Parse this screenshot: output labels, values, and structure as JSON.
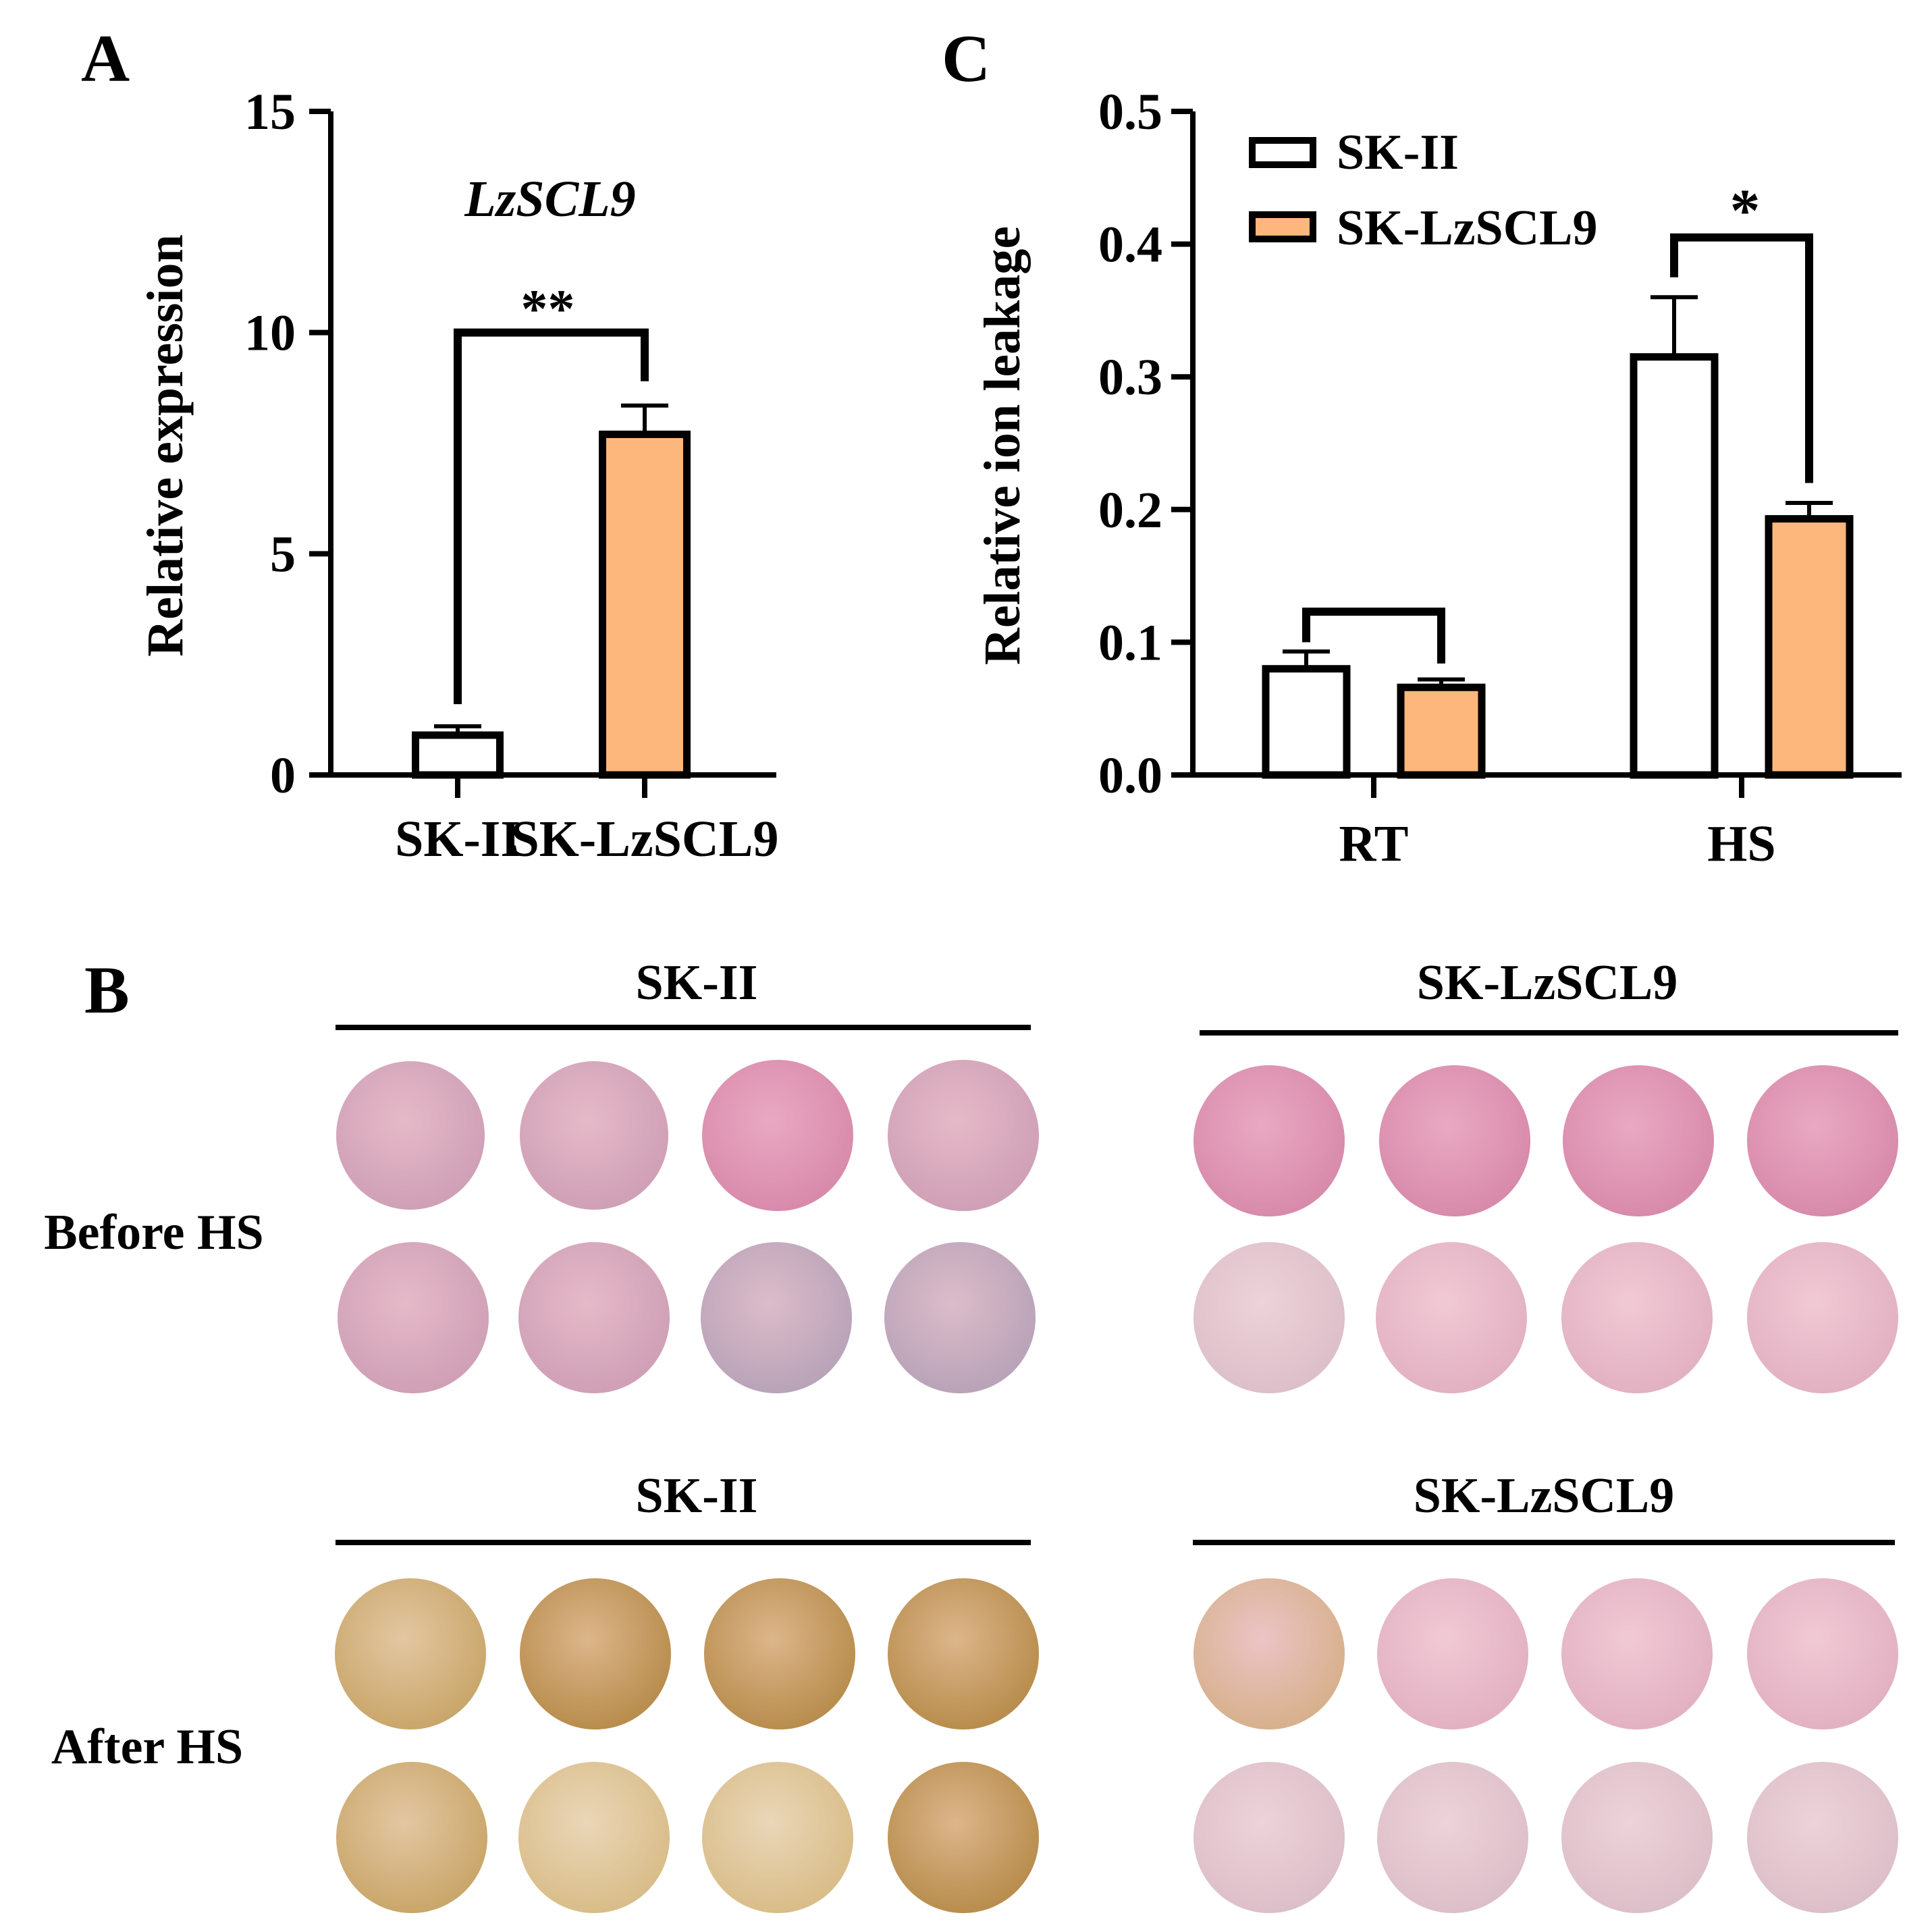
{
  "colors": {
    "orange": "#fdb77c",
    "white": "#ffffff",
    "ink": "#000000"
  },
  "panel_labels": {
    "a": "A",
    "b": "B",
    "c": "C"
  },
  "chart_data": [
    {
      "id": "A",
      "type": "bar",
      "title": "LzSCL9",
      "ylabel": "Relative expression",
      "xlabel": "",
      "ylim": [
        0,
        15
      ],
      "yticks": [
        "0",
        "5",
        "10",
        "15"
      ],
      "categories": [
        "SK-II",
        "SK-LzSCL9"
      ],
      "values": [
        0.9,
        7.7
      ],
      "errors": [
        0.2,
        0.65
      ],
      "significance": [
        {
          "pair": [
            0,
            1
          ],
          "label": "**",
          "y": 10
        }
      ]
    },
    {
      "id": "C",
      "type": "bar",
      "title": "",
      "ylabel": "Relative ion leakage",
      "xlabel": "",
      "ylim": [
        0,
        0.5
      ],
      "yticks": [
        "0.0",
        "0.1",
        "0.2",
        "0.3",
        "0.4",
        "0.5"
      ],
      "categories": [
        "RT",
        "HS"
      ],
      "legend": [
        "SK-II",
        "SK-LzSCL9"
      ],
      "legend_position": "top-left",
      "series": [
        {
          "name": "SK-II",
          "values": [
            0.08,
            0.315
          ],
          "errors": [
            0.013,
            0.045
          ]
        },
        {
          "name": "SK-LzSCL9",
          "values": [
            0.066,
            0.193
          ],
          "errors": [
            0.006,
            0.012
          ]
        }
      ],
      "significance": [
        {
          "category": 0,
          "label": "",
          "y": 0.123
        },
        {
          "category": 1,
          "label": "*",
          "y": 0.405
        }
      ]
    }
  ],
  "panel_b": {
    "group_left": "SK-II",
    "group_right": "SK-LzSCL9",
    "row_before": "Before HS",
    "row_after": "After HS"
  }
}
